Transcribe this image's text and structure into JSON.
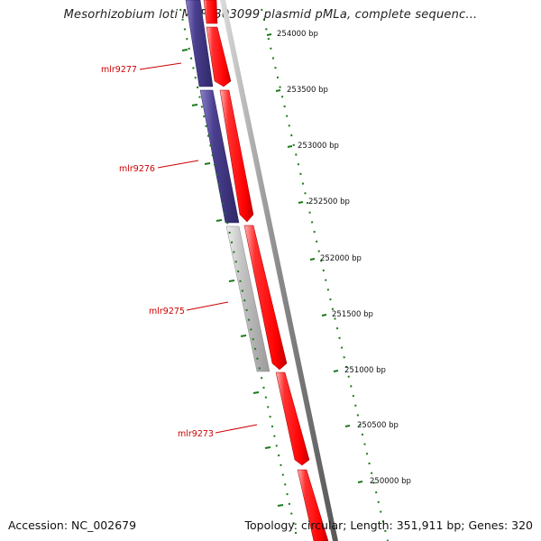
{
  "title": "Mesorhizobium loti MAFF303099 plasmid pMLa, complete sequenc...",
  "footer": {
    "accession": "Accession: NC_002679",
    "summary": "Topology: circular; Length: 351,911 bp; Genes: 320"
  },
  "colors": {
    "forward_gene": "#ff0000",
    "reverse_gene_blue": "#4a3f8f",
    "reverse_gene_gray": "#bdbdbd",
    "label": "#cc0000",
    "tick": "#1a7a1a",
    "backbone": "#777777"
  },
  "ruler": {
    "unit": "bp",
    "ticks": [
      {
        "position": 254000,
        "label": "254000 bp"
      },
      {
        "position": 253500,
        "label": "253500 bp"
      },
      {
        "position": 253000,
        "label": "253000 bp"
      },
      {
        "position": 252500,
        "label": "252500 bp"
      },
      {
        "position": 252000,
        "label": "252000 bp"
      },
      {
        "position": 251500,
        "label": "251500 bp"
      },
      {
        "position": 251000,
        "label": "251000 bp"
      },
      {
        "position": 250500,
        "label": "250500 bp"
      },
      {
        "position": 250000,
        "label": "250000 bp"
      }
    ]
  },
  "genes": [
    {
      "name": "mlr9277",
      "strand": "reverse",
      "color": "blue",
      "labeled": true
    },
    {
      "name": "mlr9276",
      "strand": "reverse",
      "color": "blue",
      "labeled": true
    },
    {
      "name": "mlr9275",
      "strand": "reverse",
      "color": "gray",
      "labeled": true
    },
    {
      "name": "mlr9273",
      "strand": "forward",
      "color": "red",
      "labeled": true
    }
  ]
}
